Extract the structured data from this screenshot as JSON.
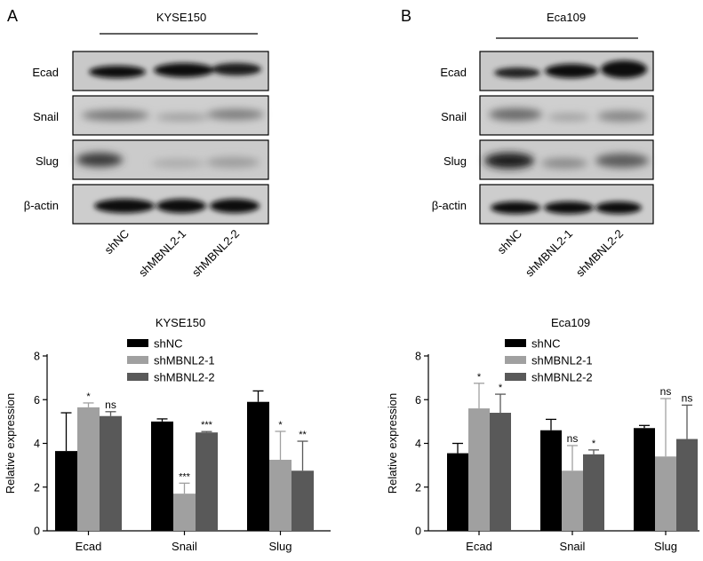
{
  "panels": [
    {
      "letter": "A",
      "cell_line": "KYSE150",
      "blot_rows": [
        "Ecad",
        "Snail",
        "Slug",
        "β-actin"
      ],
      "lanes": [
        "shNC",
        "shMBNL2-1",
        "shMBNL2-2"
      ]
    },
    {
      "letter": "B",
      "cell_line": "Eca109",
      "blot_rows": [
        "Ecad",
        "Snail",
        "Slug",
        "β-actin"
      ],
      "lanes": [
        "shNC",
        "shMBNL2-1",
        "shMBNL2-2"
      ]
    }
  ],
  "colors": {
    "shNC": "#000000",
    "shMBNL2-1": "#a0a0a0",
    "shMBNL2-2": "#595959"
  },
  "chart_data": [
    {
      "type": "bar",
      "title": "KYSE150",
      "xlabel": "",
      "ylabel": "Relative expression",
      "ylim": [
        0,
        8
      ],
      "yticks": [
        0,
        2,
        4,
        6,
        8
      ],
      "categories": [
        "Ecad",
        "Snail",
        "Slug"
      ],
      "legend": "top-right",
      "series": [
        {
          "name": "shNC",
          "values": [
            3.65,
            5.0,
            5.9
          ],
          "errors": [
            1.75,
            0.12,
            0.5
          ],
          "annotations": [
            "",
            "",
            ""
          ]
        },
        {
          "name": "shMBNL2-1",
          "values": [
            5.65,
            1.7,
            3.25
          ],
          "errors": [
            0.2,
            0.48,
            1.3
          ],
          "annotations": [
            "*",
            "***",
            "*"
          ]
        },
        {
          "name": "shMBNL2-2",
          "values": [
            5.25,
            4.5,
            2.75
          ],
          "errors": [
            0.2,
            0.04,
            1.35
          ],
          "annotations": [
            "ns",
            "***",
            "**"
          ]
        }
      ]
    },
    {
      "type": "bar",
      "title": "Eca109",
      "xlabel": "",
      "ylabel": "Relative expression",
      "ylim": [
        0,
        8
      ],
      "yticks": [
        0,
        2,
        4,
        6,
        8
      ],
      "categories": [
        "Ecad",
        "Snail",
        "Slug"
      ],
      "legend": "top-right",
      "series": [
        {
          "name": "shNC",
          "values": [
            3.55,
            4.6,
            4.7
          ],
          "errors": [
            0.45,
            0.5,
            0.12
          ],
          "annotations": [
            "",
            "",
            ""
          ]
        },
        {
          "name": "shMBNL2-1",
          "values": [
            5.6,
            2.75,
            3.4
          ],
          "errors": [
            1.15,
            1.15,
            2.65
          ],
          "annotations": [
            "*",
            "ns",
            "ns"
          ]
        },
        {
          "name": "shMBNL2-2",
          "values": [
            5.4,
            3.5,
            4.2
          ],
          "errors": [
            0.85,
            0.2,
            1.55
          ],
          "annotations": [
            "*",
            "*",
            "ns"
          ]
        }
      ]
    }
  ]
}
